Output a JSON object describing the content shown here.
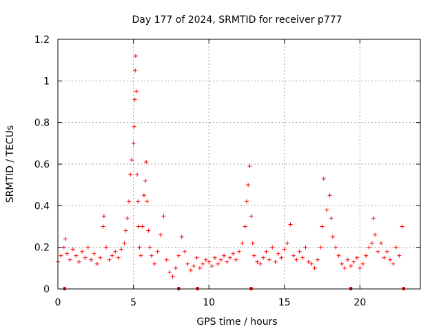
{
  "chart_data": {
    "type": "scatter",
    "title": "Day 177 of 2024, SRMTID for receiver p777",
    "xlabel": "GPS time / hours",
    "ylabel": "SRMTID / TECUs",
    "xlim": [
      0,
      24
    ],
    "ylim": [
      0,
      1.2
    ],
    "x_ticks": [
      0,
      5,
      10,
      15,
      20
    ],
    "x_tick_labels": [
      "0",
      "5",
      "10",
      "15",
      "20"
    ],
    "y_ticks": [
      0,
      0.2,
      0.4,
      0.6,
      0.8,
      1.0,
      1.2
    ],
    "y_tick_labels": [
      "0",
      "0.2",
      "0.4",
      "0.6",
      "0.8",
      "1",
      "1.2"
    ],
    "grid": true,
    "marker": "+",
    "color": "#ff0000",
    "series": [
      {
        "name": "SRMTID",
        "x": [
          0.0,
          0.2,
          0.4,
          0.5,
          0.6,
          0.8,
          1.0,
          1.2,
          1.4,
          1.6,
          1.8,
          2.0,
          2.2,
          2.4,
          2.6,
          2.8,
          3.0,
          3.05,
          3.2,
          3.4,
          3.6,
          3.8,
          4.0,
          4.2,
          4.4,
          4.5,
          4.6,
          4.7,
          4.8,
          4.9,
          5.0,
          5.05,
          5.1,
          5.12,
          5.15,
          5.2,
          5.25,
          5.3,
          5.35,
          5.4,
          5.5,
          5.6,
          5.7,
          5.8,
          5.85,
          5.9,
          6.0,
          6.1,
          6.2,
          6.4,
          6.6,
          6.8,
          7.0,
          7.2,
          7.4,
          7.6,
          7.8,
          8.0,
          8.2,
          8.4,
          8.6,
          8.8,
          9.0,
          9.2,
          9.4,
          9.6,
          9.8,
          10.0,
          10.2,
          10.4,
          10.6,
          10.8,
          11.0,
          11.2,
          11.4,
          11.6,
          11.8,
          12.0,
          12.2,
          12.4,
          12.5,
          12.6,
          12.7,
          12.8,
          12.9,
          13.0,
          13.2,
          13.4,
          13.6,
          13.8,
          14.0,
          14.2,
          14.4,
          14.6,
          14.8,
          15.0,
          15.2,
          15.4,
          15.6,
          15.8,
          16.0,
          16.2,
          16.4,
          16.6,
          16.8,
          17.0,
          17.2,
          17.4,
          17.5,
          17.6,
          17.8,
          18.0,
          18.1,
          18.2,
          18.4,
          18.6,
          18.8,
          19.0,
          19.2,
          19.4,
          19.6,
          19.8,
          20.0,
          20.2,
          20.4,
          20.6,
          20.8,
          20.9,
          21.0,
          21.2,
          21.4,
          21.6,
          21.8,
          22.0,
          22.2,
          22.4,
          22.6,
          22.8
        ],
        "y": [
          0.13,
          0.16,
          0.2,
          0.24,
          0.17,
          0.14,
          0.19,
          0.16,
          0.13,
          0.18,
          0.15,
          0.2,
          0.14,
          0.17,
          0.12,
          0.15,
          0.3,
          0.35,
          0.2,
          0.14,
          0.16,
          0.18,
          0.15,
          0.19,
          0.22,
          0.28,
          0.34,
          0.42,
          0.55,
          0.62,
          0.7,
          0.78,
          0.91,
          1.05,
          1.12,
          0.95,
          0.55,
          0.42,
          0.3,
          0.2,
          0.16,
          0.3,
          0.45,
          0.52,
          0.61,
          0.42,
          0.28,
          0.2,
          0.16,
          0.12,
          0.18,
          0.26,
          0.35,
          0.14,
          0.08,
          0.06,
          0.1,
          0.16,
          0.25,
          0.18,
          0.12,
          0.09,
          0.11,
          0.15,
          0.1,
          0.12,
          0.14,
          0.13,
          0.11,
          0.15,
          0.12,
          0.14,
          0.16,
          0.13,
          0.15,
          0.17,
          0.14,
          0.18,
          0.22,
          0.3,
          0.42,
          0.5,
          0.59,
          0.35,
          0.22,
          0.16,
          0.13,
          0.12,
          0.15,
          0.18,
          0.14,
          0.2,
          0.13,
          0.17,
          0.15,
          0.19,
          0.22,
          0.31,
          0.16,
          0.14,
          0.18,
          0.15,
          0.2,
          0.13,
          0.12,
          0.1,
          0.14,
          0.2,
          0.3,
          0.53,
          0.38,
          0.45,
          0.34,
          0.25,
          0.2,
          0.16,
          0.12,
          0.1,
          0.14,
          0.11,
          0.13,
          0.15,
          0.1,
          0.12,
          0.16,
          0.2,
          0.22,
          0.34,
          0.26,
          0.18,
          0.22,
          0.15,
          0.18,
          0.14,
          0.12,
          0.2,
          0.16,
          0.3
        ]
      }
    ],
    "gap_markers_x": [
      0.45,
      8.0,
      9.25,
      12.8,
      19.4,
      22.9
    ]
  }
}
